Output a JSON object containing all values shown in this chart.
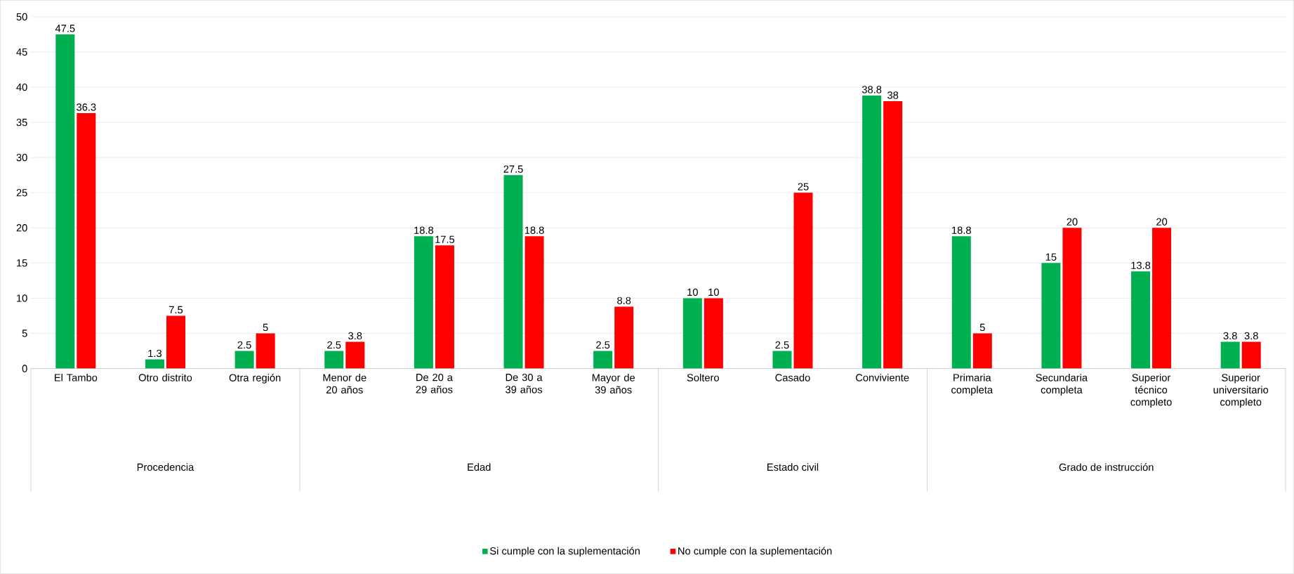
{
  "chart_data": {
    "type": "bar",
    "categories": [
      "El Tambo",
      "Otro distrito",
      "Otra región",
      "Menor de 20 años",
      "De 20 a 29 años",
      "De 30 a 39 años",
      "Mayor de 39 años",
      "Soltero",
      "Casado",
      "Conviviente",
      "Primaria completa",
      "Secundaria completa",
      "Superior técnico completo",
      "Superior universitario completo"
    ],
    "series": [
      {
        "name": "Si cumple con la suplementación",
        "color": "#00b050",
        "values": [
          47.5,
          1.3,
          2.5,
          2.5,
          18.8,
          27.5,
          2.5,
          10,
          2.5,
          38.8,
          18.8,
          15,
          13.8,
          3.8
        ]
      },
      {
        "name": "No cumple con la suplementación",
        "color": "#ff0000",
        "values": [
          36.3,
          7.5,
          5,
          3.8,
          17.5,
          18.8,
          8.8,
          10,
          25,
          38,
          5,
          20,
          20,
          3.8
        ]
      }
    ],
    "ylim": [
      0,
      50
    ],
    "yticks": [
      0,
      5,
      10,
      15,
      20,
      25,
      30,
      35,
      40,
      45,
      50
    ],
    "grid": "y",
    "legend": "bottom",
    "data_labels": true,
    "annotations": [
      "Procedencia",
      "Edad",
      "Estado civil",
      "Grado de instrucción"
    ]
  }
}
